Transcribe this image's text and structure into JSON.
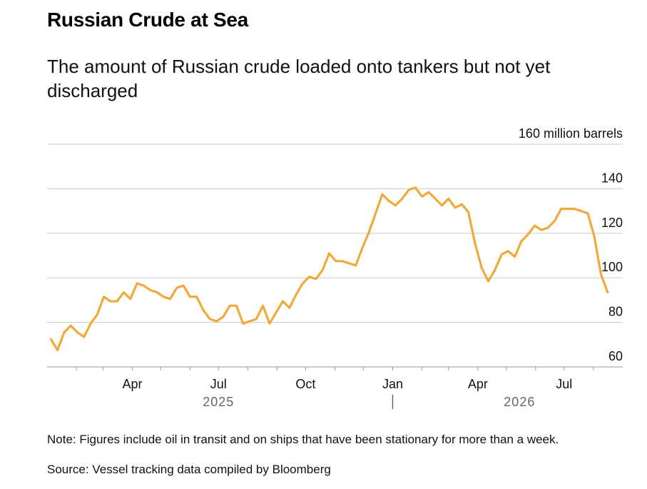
{
  "header": {
    "title": "Russian Crude at Sea",
    "subtitle": "The amount of Russian crude loaded onto tankers but not yet discharged"
  },
  "footer": {
    "note": "Note: Figures include oil in transit and on ships that have been stationary for more than a week.",
    "source": "Source: Vessel tracking data compiled by Bloomberg"
  },
  "colors": {
    "line": "#F2A93B",
    "grid": "#cccccc",
    "axis": "#999999"
  },
  "chart_data": {
    "type": "line",
    "title": "Russian Crude at Sea",
    "subtitle": "The amount of Russian crude loaded onto tankers but not yet discharged",
    "ylabel": "160 million barrels",
    "ylim": [
      60,
      160
    ],
    "y_ticks": [
      {
        "value": 160,
        "label": "160 million barrels"
      },
      {
        "value": 140,
        "label": "140"
      },
      {
        "value": 120,
        "label": "120"
      },
      {
        "value": 100,
        "label": "100"
      },
      {
        "value": 80,
        "label": "80"
      },
      {
        "value": 60,
        "label": "60"
      }
    ],
    "x_range": [
      "2025-01-01",
      "2026-09-01"
    ],
    "x_ticks": [
      {
        "date": "2025-04-01",
        "label": "Apr"
      },
      {
        "date": "2025-07-01",
        "label": "Jul"
      },
      {
        "date": "2025-10-01",
        "label": "Oct"
      },
      {
        "date": "2026-01-01",
        "label": "Jan"
      },
      {
        "date": "2026-04-01",
        "label": "Apr"
      },
      {
        "date": "2026-07-01",
        "label": "Jul"
      }
    ],
    "minor_ticks": [
      "2025-02-01",
      "2025-03-01",
      "2025-05-01",
      "2025-06-01",
      "2025-08-01",
      "2025-09-01",
      "2025-11-01",
      "2025-12-01",
      "2026-02-01",
      "2026-03-01",
      "2026-05-01",
      "2026-06-01",
      "2026-08-01"
    ],
    "year_labels": [
      {
        "date": "2025-07-01",
        "label": "2025"
      },
      {
        "date": "2026-05-15",
        "label": "2026"
      }
    ],
    "year_separator": "2026-01-01",
    "grid": true,
    "legend": "none",
    "series": [
      {
        "values": [
          [
            "2025-01-05",
            72.5
          ],
          [
            "2025-01-12",
            67.5
          ],
          [
            "2025-01-19",
            75.5
          ],
          [
            "2025-01-26",
            78.5
          ],
          [
            "2025-02-02",
            75.5
          ],
          [
            "2025-02-09",
            73.5
          ],
          [
            "2025-02-16",
            79.5
          ],
          [
            "2025-02-23",
            83.5
          ],
          [
            "2025-03-02",
            91.5
          ],
          [
            "2025-03-09",
            89.5
          ],
          [
            "2025-03-16",
            89.5
          ],
          [
            "2025-03-23",
            93.5
          ],
          [
            "2025-03-30",
            90.5
          ],
          [
            "2025-04-06",
            97.5
          ],
          [
            "2025-04-13",
            96.5
          ],
          [
            "2025-04-20",
            94.5
          ],
          [
            "2025-04-27",
            93.5
          ],
          [
            "2025-05-04",
            91.5
          ],
          [
            "2025-05-11",
            90.5
          ],
          [
            "2025-05-18",
            95.5
          ],
          [
            "2025-05-25",
            96.5
          ],
          [
            "2025-06-01",
            91.5
          ],
          [
            "2025-06-08",
            91.5
          ],
          [
            "2025-06-15",
            85.5
          ],
          [
            "2025-06-22",
            81.5
          ],
          [
            "2025-06-29",
            80.5
          ],
          [
            "2025-07-06",
            82.5
          ],
          [
            "2025-07-13",
            87.5
          ],
          [
            "2025-07-20",
            87.5
          ],
          [
            "2025-07-27",
            79.5
          ],
          [
            "2025-08-03",
            80.5
          ],
          [
            "2025-08-10",
            81.5
          ],
          [
            "2025-08-17",
            87.5
          ],
          [
            "2025-08-24",
            79.5
          ],
          [
            "2025-08-31",
            84.5
          ],
          [
            "2025-09-07",
            89.5
          ],
          [
            "2025-09-14",
            86.5
          ],
          [
            "2025-09-21",
            92.5
          ],
          [
            "2025-09-28",
            97.5
          ],
          [
            "2025-10-05",
            100.5
          ],
          [
            "2025-10-12",
            99.5
          ],
          [
            "2025-10-19",
            103.5
          ],
          [
            "2025-10-26",
            111.0
          ],
          [
            "2025-11-02",
            107.5
          ],
          [
            "2025-11-09",
            107.5
          ],
          [
            "2025-11-16",
            106.5
          ],
          [
            "2025-11-23",
            105.5
          ],
          [
            "2025-11-30",
            113.5
          ],
          [
            "2025-12-07",
            120.5
          ],
          [
            "2025-12-14",
            129.0
          ],
          [
            "2025-12-21",
            137.5
          ],
          [
            "2025-12-28",
            134.5
          ],
          [
            "2026-01-04",
            132.5
          ],
          [
            "2026-01-11",
            135.5
          ],
          [
            "2026-01-18",
            139.5
          ],
          [
            "2026-01-25",
            140.5
          ],
          [
            "2026-02-01",
            136.5
          ],
          [
            "2026-02-08",
            138.5
          ],
          [
            "2026-02-15",
            135.5
          ],
          [
            "2026-02-22",
            132.5
          ],
          [
            "2026-03-01",
            135.5
          ],
          [
            "2026-03-08",
            131.5
          ],
          [
            "2026-03-15",
            133.0
          ],
          [
            "2026-03-22",
            129.5
          ],
          [
            "2026-03-29",
            115.5
          ],
          [
            "2026-04-05",
            104.5
          ],
          [
            "2026-04-12",
            98.5
          ],
          [
            "2026-04-19",
            103.5
          ],
          [
            "2026-04-26",
            110.5
          ],
          [
            "2026-05-03",
            112.0
          ],
          [
            "2026-05-10",
            109.5
          ],
          [
            "2026-05-17",
            116.5
          ],
          [
            "2026-05-24",
            119.5
          ],
          [
            "2026-05-31",
            123.5
          ],
          [
            "2026-06-07",
            121.5
          ],
          [
            "2026-06-14",
            122.5
          ],
          [
            "2026-06-21",
            125.5
          ],
          [
            "2026-06-28",
            131.0
          ],
          [
            "2026-07-05",
            131.0
          ],
          [
            "2026-07-12",
            131.0
          ],
          [
            "2026-07-19",
            130.0
          ],
          [
            "2026-07-26",
            129.0
          ],
          [
            "2026-08-02",
            118.5
          ],
          [
            "2026-08-09",
            101.5
          ],
          [
            "2026-08-16",
            93.5
          ]
        ]
      }
    ]
  }
}
